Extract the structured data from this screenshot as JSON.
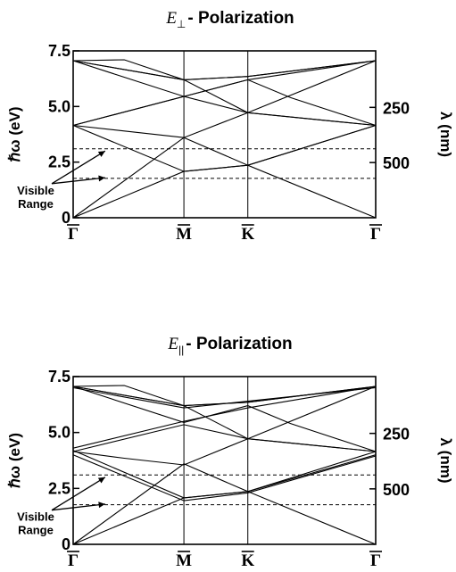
{
  "chart_data": [
    {
      "type": "line",
      "title_symbol": "E",
      "title_sub": "⊥",
      "title_rest": "- Polarization",
      "ylabel": "ℏω (eV)",
      "y2label": "λ (nm)",
      "ylim": [
        0,
        7.5
      ],
      "yticks": [
        "0",
        "2.5",
        "5.0",
        "7.5"
      ],
      "y2ticks": [
        {
          "label": "250",
          "ev": 4.96
        },
        {
          "label": "500",
          "ev": 2.48
        }
      ],
      "kpoints": [
        {
          "label": "Γ",
          "x": 0
        },
        {
          "label": "M",
          "x": 0.866
        },
        {
          "label": "K",
          "x": 1.366
        },
        {
          "label": "Γ",
          "x": 2.366
        }
      ],
      "xlim": [
        0,
        2.366
      ],
      "visible_range": [
        1.77,
        3.1
      ],
      "annotation": [
        "Visible",
        "Range"
      ],
      "series": [
        {
          "x": [
            0,
            0.866,
            1.366,
            2.366
          ],
          "y": [
            0,
            2.08,
            2.36,
            0
          ]
        },
        {
          "x": [
            0,
            0.866,
            1.366,
            2.366
          ],
          "y": [
            0,
            3.6,
            2.36,
            4.15
          ]
        },
        {
          "x": [
            0,
            0.4,
            0.866,
            1.366,
            2.366
          ],
          "y": [
            4.15,
            3.9,
            3.6,
            4.72,
            7.06
          ]
        },
        {
          "x": [
            0,
            0.866,
            1.366,
            2.366
          ],
          "y": [
            4.15,
            2.08,
            2.36,
            4.15
          ]
        },
        {
          "x": [
            0,
            0.866,
            1.366,
            2.366
          ],
          "y": [
            4.15,
            5.45,
            4.72,
            4.15
          ]
        },
        {
          "x": [
            0,
            0.866,
            1.366,
            2.366
          ],
          "y": [
            4.15,
            5.45,
            6.2,
            7.06
          ]
        },
        {
          "x": [
            0,
            0.866,
            1.366,
            1.7,
            2.366
          ],
          "y": [
            7.06,
            5.45,
            6.2,
            5.4,
            4.15
          ]
        },
        {
          "x": [
            0,
            0.866,
            1.366,
            2.366
          ],
          "y": [
            7.06,
            6.2,
            6.35,
            7.06
          ]
        },
        {
          "x": [
            0,
            0.4,
            0.866,
            1.366,
            2.366
          ],
          "y": [
            7.06,
            7.1,
            6.2,
            6.35,
            7.06
          ]
        },
        {
          "x": [
            0,
            0.866,
            1.366,
            2.366
          ],
          "y": [
            7.06,
            6.2,
            4.72,
            4.15
          ]
        }
      ]
    },
    {
      "type": "line",
      "title_symbol": "E",
      "title_sub": "||",
      "title_rest": "- Polarization",
      "ylabel": "ℏω (eV)",
      "y2label": "λ (nm)",
      "ylim": [
        0,
        7.5
      ],
      "yticks": [
        "0",
        "2.5",
        "5.0",
        "7.5"
      ],
      "y2ticks": [
        {
          "label": "250",
          "ev": 4.96
        },
        {
          "label": "500",
          "ev": 2.48
        }
      ],
      "kpoints": [
        {
          "label": "Γ",
          "x": 0
        },
        {
          "label": "M",
          "x": 0.866
        },
        {
          "label": "K",
          "x": 1.366
        },
        {
          "label": "Γ",
          "x": 2.366
        }
      ],
      "xlim": [
        0,
        2.366
      ],
      "visible_range": [
        1.77,
        3.1
      ],
      "annotation": [
        "Visible",
        "Range"
      ],
      "series": [
        {
          "x": [
            0,
            0.866,
            1.366,
            2.366
          ],
          "y": [
            0,
            2.08,
            2.36,
            0
          ]
        },
        {
          "x": [
            0,
            0.866,
            1.366,
            2.366
          ],
          "y": [
            0,
            3.6,
            2.36,
            4.0
          ]
        },
        {
          "x": [
            0,
            0.866,
            1.366,
            2.366
          ],
          "y": [
            4.0,
            1.95,
            2.3,
            3.95
          ]
        },
        {
          "x": [
            0,
            0.866,
            1.366,
            2.366
          ],
          "y": [
            4.2,
            2.08,
            2.36,
            4.15
          ]
        },
        {
          "x": [
            0,
            0.4,
            0.866,
            1.366,
            2.366
          ],
          "y": [
            4.15,
            3.85,
            3.55,
            4.72,
            7.06
          ]
        },
        {
          "x": [
            0,
            0.866,
            1.366,
            2.366
          ],
          "y": [
            4.15,
            5.35,
            4.72,
            4.15
          ]
        },
        {
          "x": [
            0,
            0.866,
            1.366,
            2.366
          ],
          "y": [
            4.3,
            5.5,
            6.1,
            7.06
          ]
        },
        {
          "x": [
            0,
            0.866,
            1.366,
            1.7,
            2.366
          ],
          "y": [
            7.06,
            5.45,
            6.2,
            5.4,
            4.15
          ]
        },
        {
          "x": [
            0,
            0.866,
            1.366,
            2.366
          ],
          "y": [
            7.06,
            6.2,
            6.35,
            7.06
          ]
        },
        {
          "x": [
            0,
            0.4,
            0.866,
            1.366,
            2.366
          ],
          "y": [
            7.06,
            7.1,
            6.2,
            6.35,
            7.06
          ]
        },
        {
          "x": [
            0,
            0.866,
            1.366,
            2.366
          ],
          "y": [
            7.06,
            6.2,
            4.72,
            4.15
          ]
        },
        {
          "x": [
            0,
            0.866,
            1.366,
            2.366
          ],
          "y": [
            7.0,
            6.1,
            6.4,
            7.0
          ]
        }
      ]
    }
  ]
}
